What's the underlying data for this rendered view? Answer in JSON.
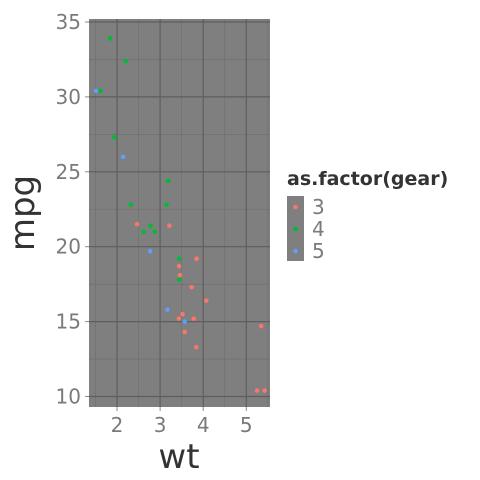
{
  "chart_data": {
    "type": "scatter",
    "xlabel": "wt",
    "ylabel": "mpg",
    "xlim": [
      1.35,
      5.55
    ],
    "ylim": [
      9.3,
      35.2
    ],
    "x_ticks": [
      2,
      3,
      4,
      5
    ],
    "y_ticks": [
      10,
      15,
      20,
      25,
      30,
      35
    ],
    "grid": true,
    "legend": {
      "title": "as.factor(gear)",
      "placement": "right"
    },
    "series": [
      {
        "name": "3",
        "color": "#f8766d",
        "points": [
          {
            "x": 3.215,
            "y": 21.4
          },
          {
            "x": 3.44,
            "y": 18.7
          },
          {
            "x": 3.46,
            "y": 18.1
          },
          {
            "x": 3.57,
            "y": 14.3
          },
          {
            "x": 4.07,
            "y": 16.4
          },
          {
            "x": 3.73,
            "y": 17.3
          },
          {
            "x": 3.78,
            "y": 15.2
          },
          {
            "x": 5.25,
            "y": 10.4
          },
          {
            "x": 5.424,
            "y": 10.4
          },
          {
            "x": 5.345,
            "y": 14.7
          },
          {
            "x": 2.465,
            "y": 21.5
          },
          {
            "x": 3.52,
            "y": 15.5
          },
          {
            "x": 3.435,
            "y": 15.2
          },
          {
            "x": 3.84,
            "y": 13.3
          },
          {
            "x": 3.845,
            "y": 19.2
          }
        ]
      },
      {
        "name": "4",
        "color": "#00ba38",
        "points": [
          {
            "x": 2.62,
            "y": 21.0
          },
          {
            "x": 2.875,
            "y": 21.0
          },
          {
            "x": 2.32,
            "y": 22.8
          },
          {
            "x": 3.19,
            "y": 24.4
          },
          {
            "x": 3.15,
            "y": 22.8
          },
          {
            "x": 3.44,
            "y": 19.2
          },
          {
            "x": 3.44,
            "y": 17.8
          },
          {
            "x": 2.2,
            "y": 32.4
          },
          {
            "x": 1.615,
            "y": 30.4
          },
          {
            "x": 1.835,
            "y": 33.9
          },
          {
            "x": 1.935,
            "y": 27.3
          },
          {
            "x": 2.78,
            "y": 21.4
          }
        ]
      },
      {
        "name": "5",
        "color": "#619cff",
        "points": [
          {
            "x": 2.14,
            "y": 26.0
          },
          {
            "x": 1.513,
            "y": 30.4
          },
          {
            "x": 3.17,
            "y": 15.8
          },
          {
            "x": 2.77,
            "y": 19.7
          },
          {
            "x": 3.57,
            "y": 15.0
          }
        ]
      }
    ]
  }
}
